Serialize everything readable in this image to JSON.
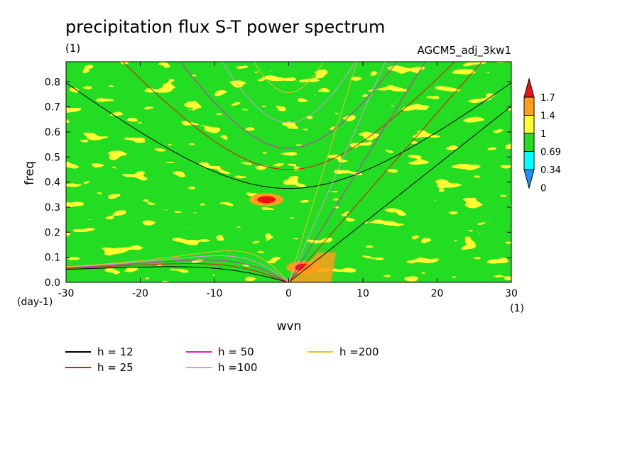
{
  "chart_data": {
    "type": "heatmap",
    "title": "precipitation flux S-T power spectrum",
    "subtitle_left": "(1)",
    "subtitle_right": "AGCM5_adj_3kw1",
    "xlabel": "wvn",
    "ylabel": "freq",
    "x_unit": "(1)",
    "y_unit": "(day-1)",
    "xlim": [
      -30,
      30
    ],
    "ylim": [
      0,
      0.88
    ],
    "x_ticks": [
      -30,
      -20,
      -10,
      0,
      10,
      20,
      30
    ],
    "x_tick_labels": [
      "-30",
      "-20",
      "-10",
      "0",
      "10",
      "20",
      "30"
    ],
    "y_ticks": [
      0,
      0.1,
      0.2,
      0.3,
      0.4,
      0.5,
      0.6,
      0.7,
      0.8
    ],
    "y_tick_labels": [
      "0.0",
      "0.1",
      "0.2",
      "0.3",
      "0.4",
      "0.5",
      "0.6",
      "0.7",
      "0.8"
    ],
    "colorbar": {
      "labels": [
        "0",
        "0.34",
        "0.69",
        "1",
        "1.4",
        "1.7"
      ],
      "levels": [
        0,
        0.34,
        0.69,
        1,
        1.4,
        1.7
      ],
      "colors": [
        "#1e90ff",
        "#00ffff",
        "#22dd22",
        "#ffff33",
        "#ff9f1a",
        "#ee1111"
      ]
    },
    "background_fill": "#22dd22",
    "features": [
      {
        "kind": "peak",
        "x": -3,
        "y": 0.33,
        "level": 1.7
      },
      {
        "kind": "peak",
        "x": 2,
        "y": 0.06,
        "level": 1.7
      },
      {
        "kind": "enhanced_band",
        "x": [
          0,
          4
        ],
        "y": [
          0,
          0.12
        ],
        "level": 1.4
      }
    ],
    "dispersion_curves": [
      {
        "h": 12,
        "color": "#000000"
      },
      {
        "h": 25,
        "color": "#ee1111"
      },
      {
        "h": 50,
        "color": "#e020c0"
      },
      {
        "h": 100,
        "color": "#dd99dd"
      },
      {
        "h": 200,
        "color": "#f0c020"
      }
    ],
    "legend": [
      {
        "label": "h = 12",
        "color": "#000000"
      },
      {
        "label": "h = 50",
        "color": "#e020c0"
      },
      {
        "label": "h =200",
        "color": "#f0c020"
      },
      {
        "label": "h = 25",
        "color": "#ee1111"
      },
      {
        "label": "h =100",
        "color": "#dd99dd"
      }
    ]
  }
}
